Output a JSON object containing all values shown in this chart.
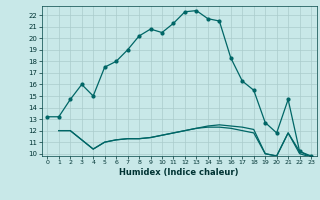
{
  "xlabel": "Humidex (Indice chaleur)",
  "bg_color": "#c8e8e8",
  "grid_color": "#aacccc",
  "line_color": "#006666",
  "xlim": [
    -0.5,
    23.5
  ],
  "ylim": [
    9.8,
    22.8
  ],
  "yticks": [
    10,
    11,
    12,
    13,
    14,
    15,
    16,
    17,
    18,
    19,
    20,
    21,
    22
  ],
  "xticks": [
    0,
    1,
    2,
    3,
    4,
    5,
    6,
    7,
    8,
    9,
    10,
    11,
    12,
    13,
    14,
    15,
    16,
    17,
    18,
    19,
    20,
    21,
    22,
    23
  ],
  "line1_x": [
    0,
    1,
    2,
    3,
    4,
    5,
    6,
    7,
    8,
    9,
    10,
    11,
    12,
    13,
    14,
    15,
    16,
    17,
    18,
    19,
    20,
    21,
    22,
    23
  ],
  "line1_y": [
    13.2,
    13.2,
    14.7,
    16.0,
    15.0,
    17.5,
    18.0,
    19.0,
    20.2,
    20.8,
    20.5,
    21.3,
    22.3,
    22.4,
    21.7,
    21.5,
    18.3,
    16.3,
    15.5,
    12.7,
    11.8,
    14.7,
    10.2,
    9.8
  ],
  "line2_x": [
    1,
    2,
    3,
    4,
    5,
    6,
    7,
    8,
    9,
    10,
    11,
    12,
    13,
    14,
    15,
    16,
    17,
    18,
    19,
    20,
    21,
    22,
    23
  ],
  "line2_y": [
    12.0,
    12.0,
    11.2,
    10.4,
    11.0,
    11.2,
    11.3,
    11.3,
    11.4,
    11.6,
    11.8,
    12.0,
    12.2,
    12.4,
    12.5,
    12.4,
    12.3,
    12.1,
    10.0,
    9.8,
    11.8,
    10.2,
    9.7
  ],
  "line3_x": [
    1,
    2,
    3,
    4,
    5,
    6,
    7,
    8,
    9,
    10,
    11,
    12,
    13,
    14,
    15,
    16,
    17,
    18,
    19,
    20,
    21,
    22,
    23
  ],
  "line3_y": [
    12.0,
    12.0,
    11.2,
    10.4,
    11.0,
    11.2,
    11.3,
    11.3,
    11.4,
    11.6,
    11.8,
    12.0,
    12.2,
    12.3,
    12.3,
    12.2,
    12.0,
    11.8,
    10.0,
    9.8,
    11.8,
    10.0,
    9.7
  ]
}
